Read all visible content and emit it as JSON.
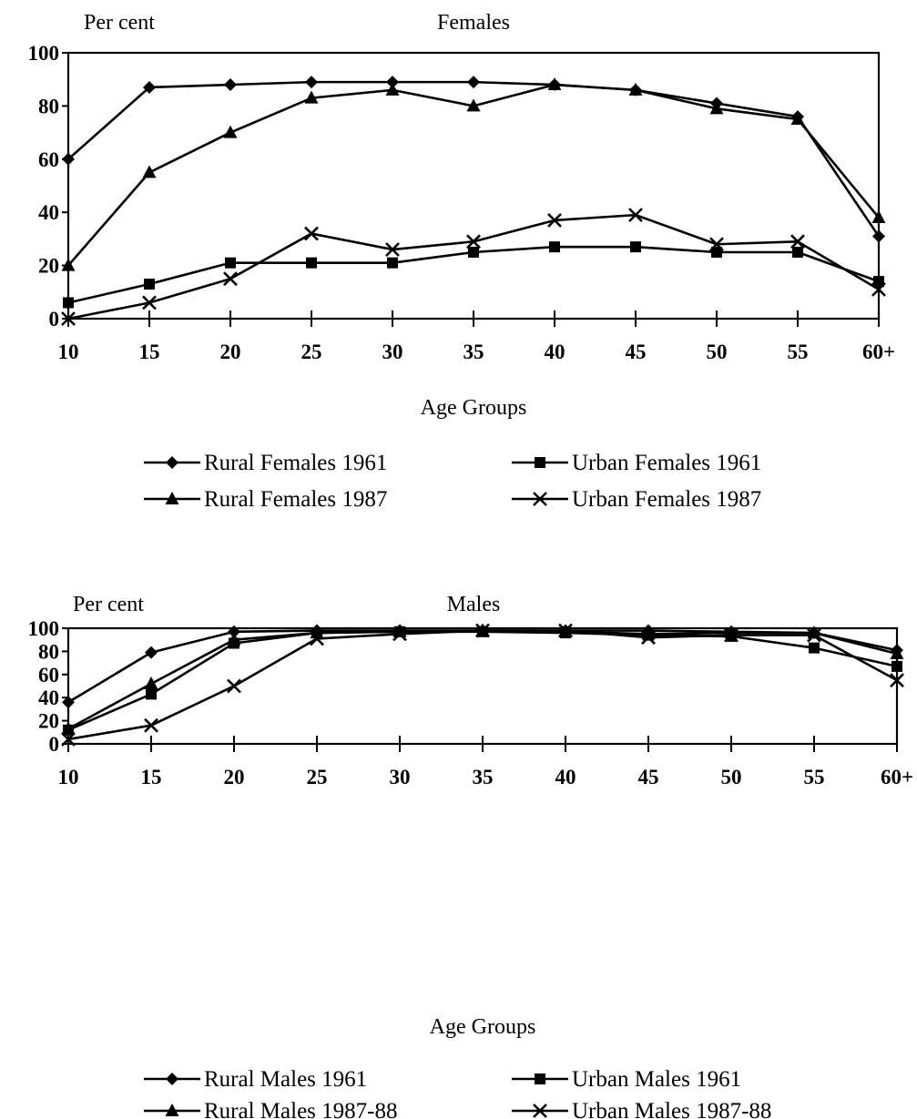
{
  "chart_data": [
    {
      "type": "line",
      "title": "Females",
      "ylabel": "Per cent",
      "xlabel": "Age Groups",
      "categories": [
        "10",
        "15",
        "20",
        "25",
        "30",
        "35",
        "40",
        "45",
        "50",
        "55",
        "60+"
      ],
      "ylim": [
        0,
        100
      ],
      "yticks": [
        0,
        20,
        40,
        60,
        80,
        100
      ],
      "grid": false,
      "legend_position": "bottom",
      "series": [
        {
          "name": "Rural Females 1961",
          "marker": "diamond",
          "values": [
            60,
            87,
            88,
            89,
            89,
            89,
            88,
            86,
            81,
            76,
            31
          ]
        },
        {
          "name": "Urban Females 1961",
          "marker": "square",
          "values": [
            6,
            13,
            21,
            21,
            21,
            25,
            27,
            27,
            25,
            25,
            14
          ]
        },
        {
          "name": "Rural Females 1987",
          "marker": "triangle",
          "values": [
            20,
            55,
            70,
            83,
            86,
            80,
            88,
            86,
            79,
            75,
            38
          ]
        },
        {
          "name": "Urban Females 1987",
          "marker": "x",
          "values": [
            0,
            6,
            15,
            32,
            26,
            29,
            37,
            39,
            28,
            29,
            11
          ]
        }
      ]
    },
    {
      "type": "line",
      "title": "Males",
      "ylabel": "Per cent",
      "xlabel": "Age Groups",
      "categories": [
        "10",
        "15",
        "20",
        "25",
        "30",
        "35",
        "40",
        "45",
        "50",
        "55",
        "60+"
      ],
      "ylim": [
        0,
        100
      ],
      "yticks": [
        0,
        20,
        40,
        60,
        80,
        100
      ],
      "grid": false,
      "legend_position": "bottom",
      "series": [
        {
          "name": "Rural Males 1961",
          "marker": "diamond",
          "values": [
            36,
            79,
            97,
            98,
            98,
            98,
            98,
            98,
            97,
            96,
            81
          ]
        },
        {
          "name": "Urban  Males 1961",
          "marker": "square",
          "values": [
            12,
            43,
            87,
            96,
            97,
            97,
            96,
            94,
            93,
            83,
            67
          ]
        },
        {
          "name": "Rural Males 1987-88",
          "marker": "triangle",
          "values": [
            13,
            52,
            90,
            96,
            97,
            98,
            97,
            95,
            96,
            96,
            78
          ]
        },
        {
          "name": "Urban Males 1987-88",
          "marker": "x",
          "values": [
            4,
            16,
            50,
            91,
            95,
            98,
            98,
            92,
            94,
            94,
            55
          ]
        }
      ]
    }
  ]
}
